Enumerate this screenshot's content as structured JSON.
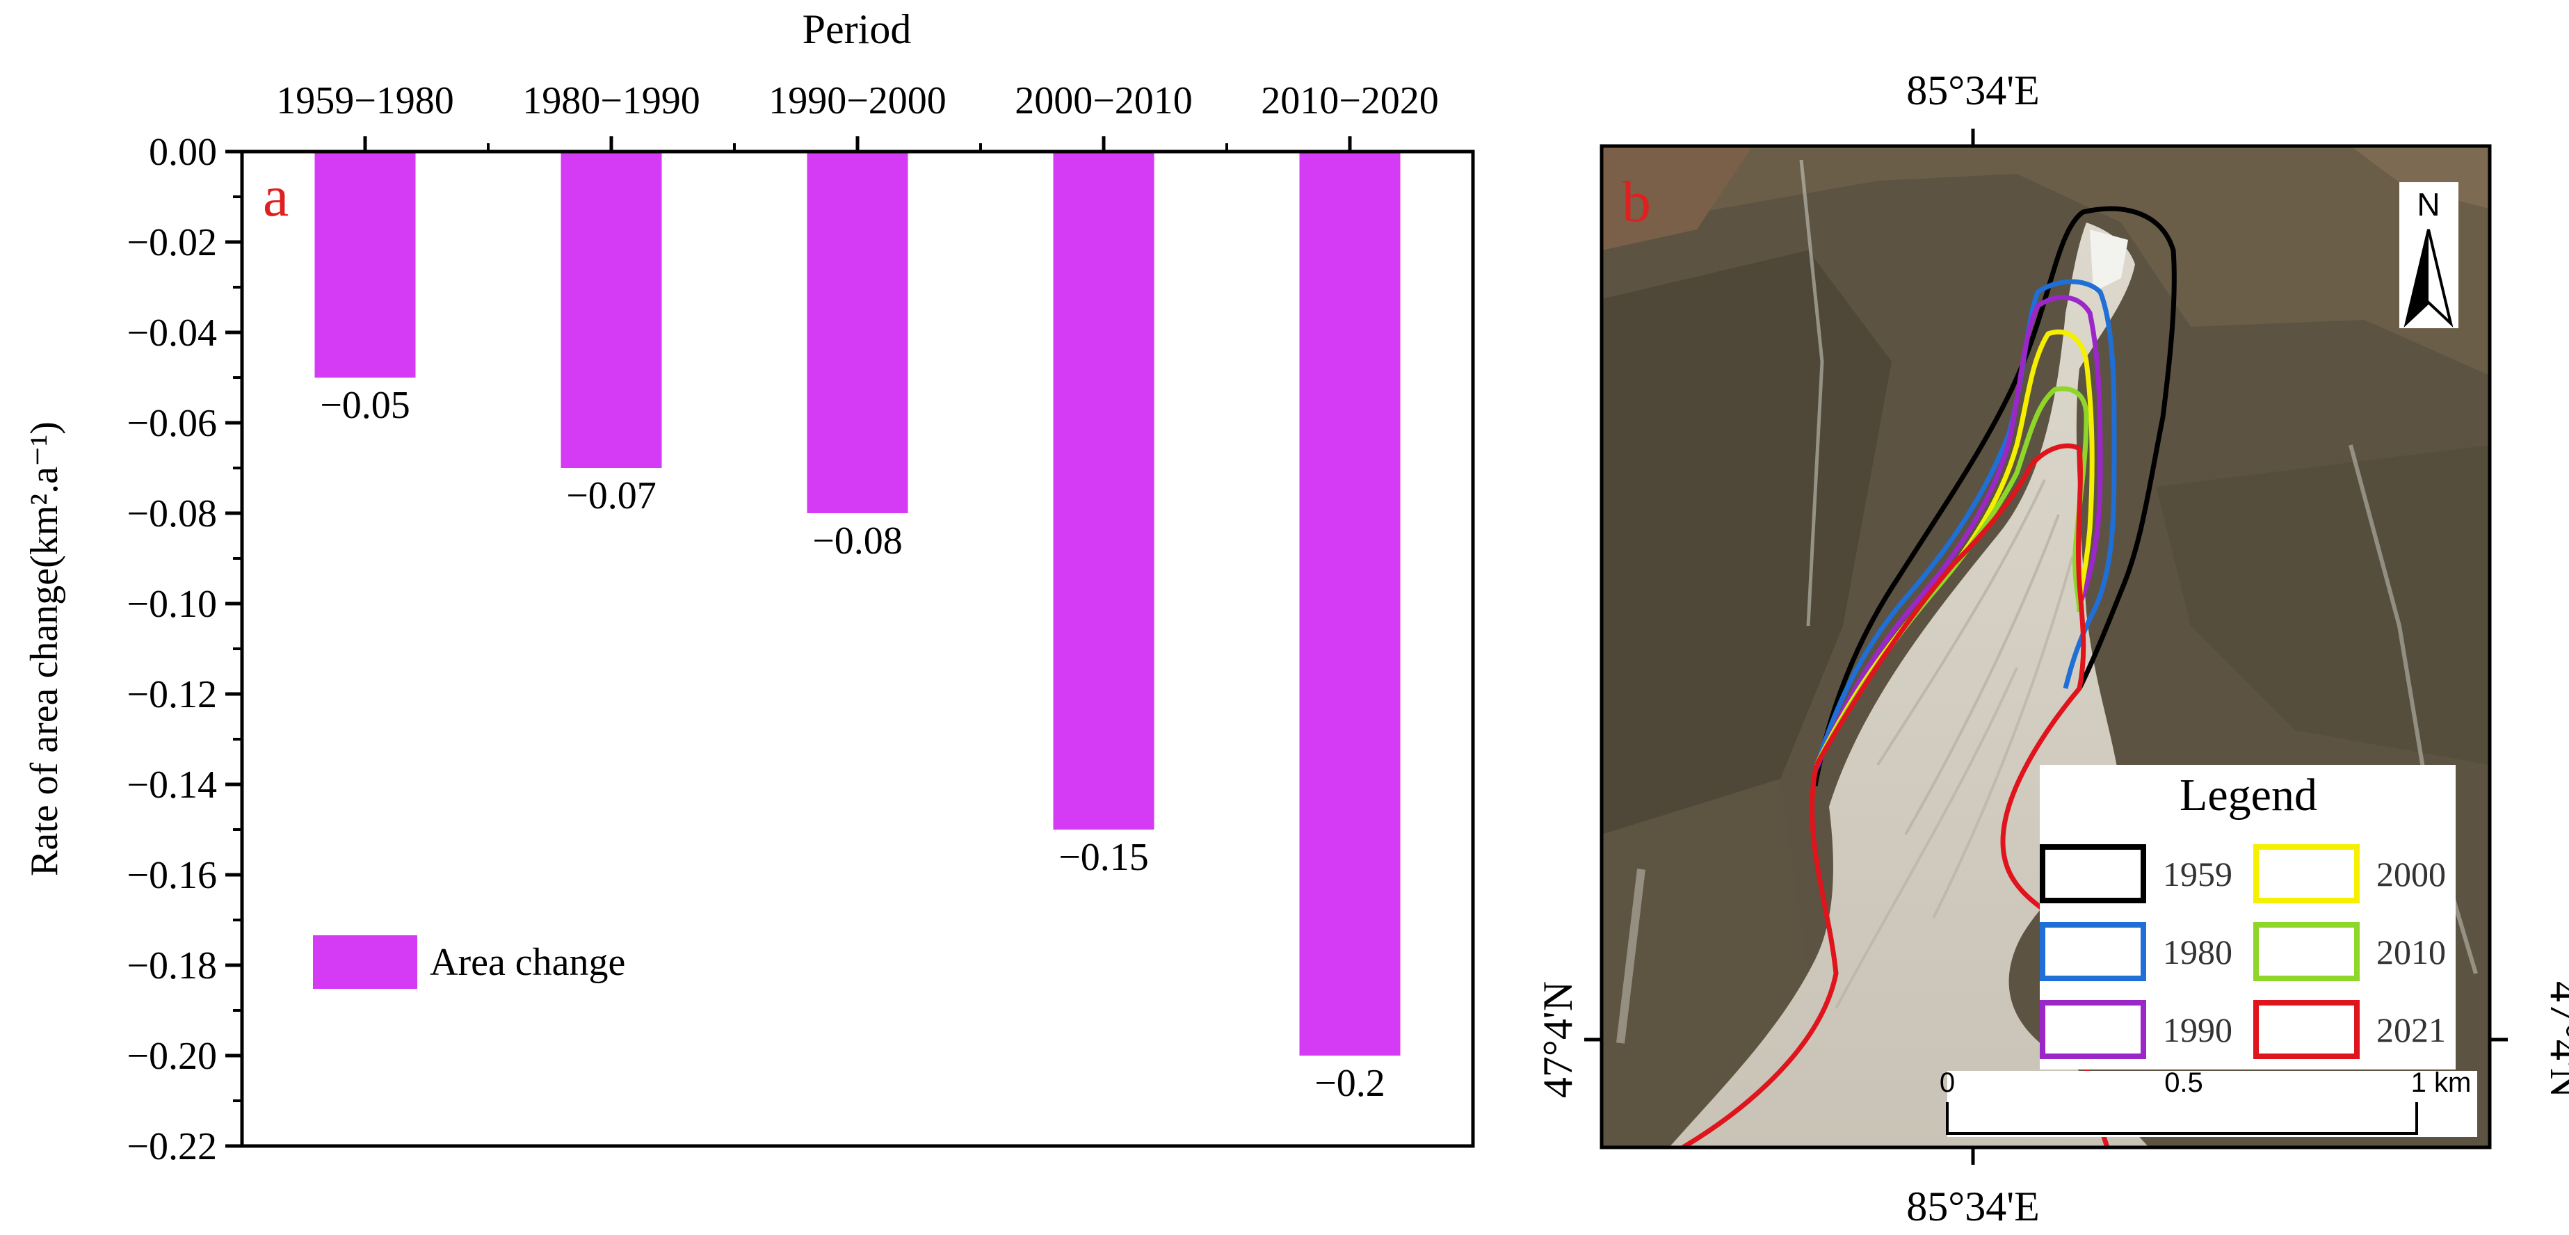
{
  "chart_data": [
    {
      "type": "bar",
      "panel_label": "a",
      "xlabel": "Period",
      "ylabel": "Rate of area change(km².a⁻¹)",
      "categories": [
        "1959−1980",
        "1980−1990",
        "1990−2000",
        "2000−2010",
        "2010−2020"
      ],
      "series": [
        {
          "name": "Area change",
          "values": [
            -0.05,
            -0.07,
            -0.08,
            -0.15,
            -0.2
          ]
        }
      ],
      "data_labels": [
        "−0.05",
        "−0.07",
        "−0.08",
        "−0.15",
        "−0.2"
      ],
      "yticks": [
        "0.00",
        "−0.02",
        "−0.04",
        "−0.06",
        "−0.08",
        "−0.10",
        "−0.12",
        "−0.14",
        "−0.16",
        "−0.18",
        "−0.20",
        "−0.22"
      ],
      "ytick_values": [
        0,
        -0.02,
        -0.04,
        -0.06,
        -0.08,
        -0.1,
        -0.12,
        -0.14,
        -0.16,
        -0.18,
        -0.2,
        -0.22
      ],
      "ylim": [
        -0.22,
        0
      ],
      "xaxis_position": "top",
      "grid": false,
      "legend_position": "bottom-left",
      "bar_color": "#d53af5"
    }
  ],
  "map": {
    "panel_label": "b",
    "coord_top": "85°34'E",
    "coord_bottom": "85°34'E",
    "coord_left": "47°4'N",
    "coord_right": "47°4'N",
    "north_label": "N",
    "legend": {
      "title": "Legend",
      "entries": [
        {
          "year": "1959",
          "color": "#000000"
        },
        {
          "year": "1980",
          "color": "#1f6fd6"
        },
        {
          "year": "1990",
          "color": "#9b27c9"
        },
        {
          "year": "2000",
          "color": "#f5f000"
        },
        {
          "year": "2010",
          "color": "#8ed62a"
        },
        {
          "year": "2021",
          "color": "#e0141c"
        }
      ]
    },
    "scale": {
      "labels": [
        "0",
        "0.5",
        "1 km"
      ]
    }
  }
}
